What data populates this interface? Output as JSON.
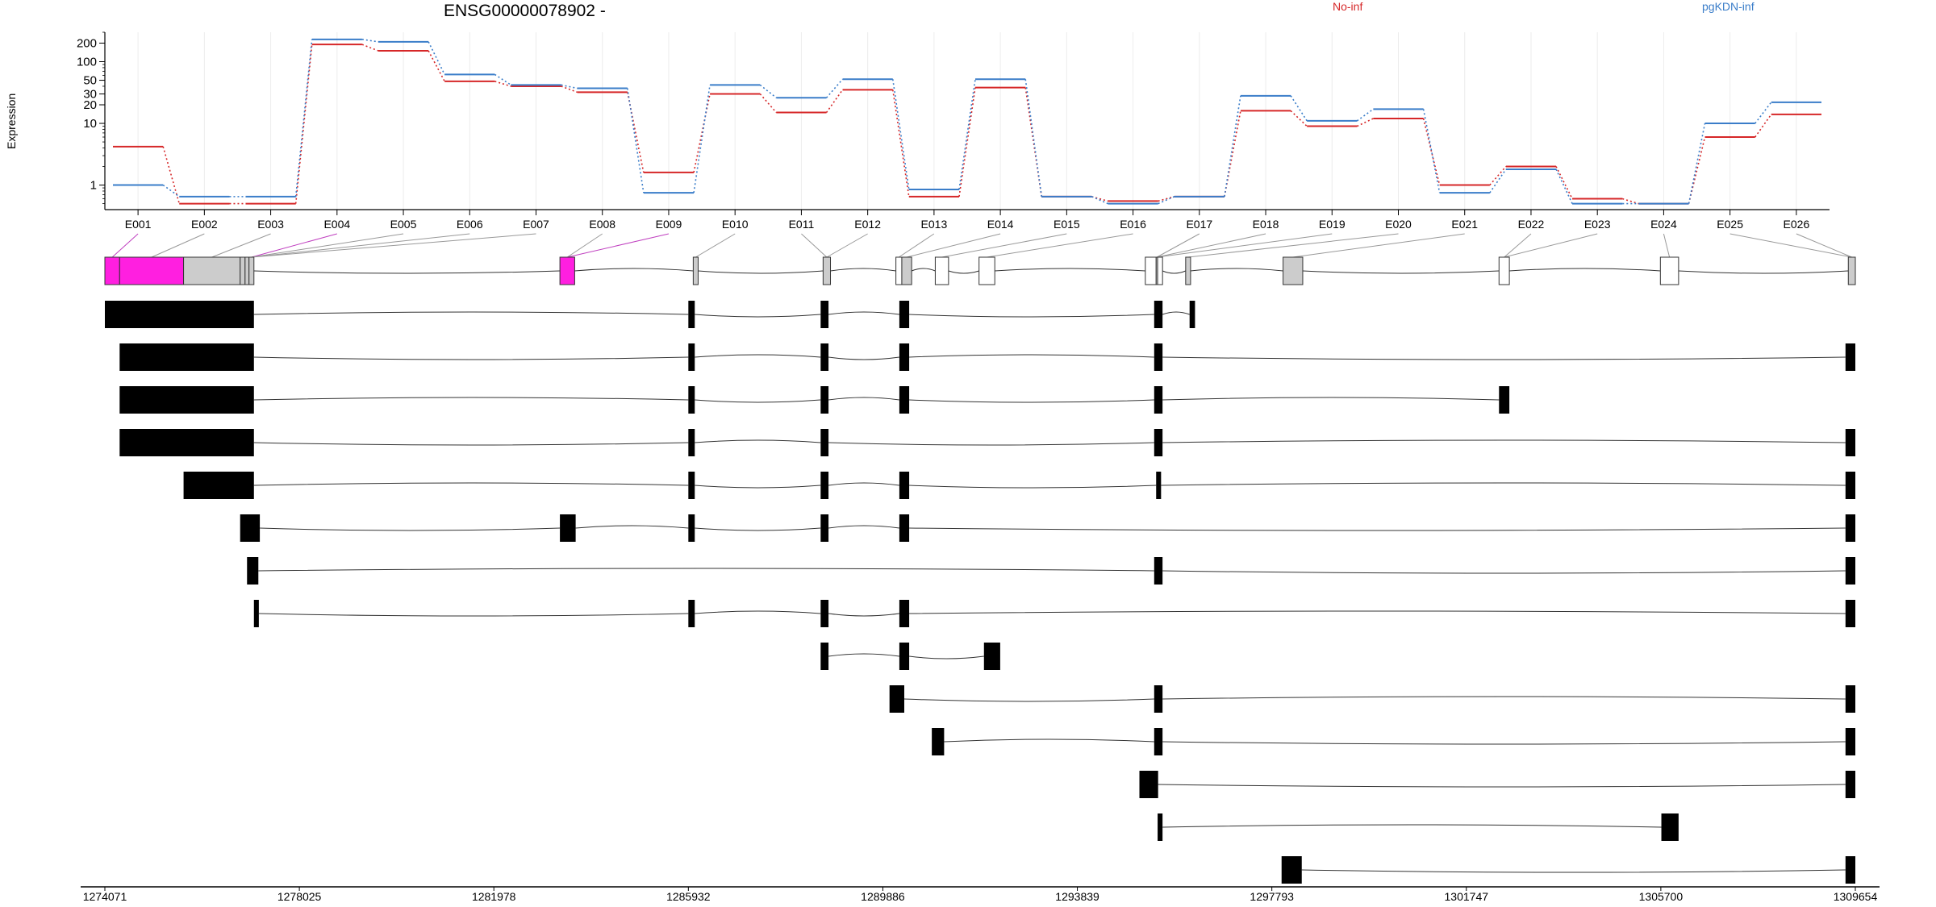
{
  "chart_data": {
    "type": "line",
    "title": "ENSG00000078902 -",
    "ylabel": "Expression",
    "yscale": "log",
    "ylim": [
      0.4,
      300
    ],
    "yticks": [
      1,
      10,
      20,
      30,
      50,
      100,
      200
    ],
    "exons": [
      "E001",
      "E002",
      "E003",
      "E004",
      "E005",
      "E006",
      "E007",
      "E008",
      "E009",
      "E010",
      "E011",
      "E012",
      "E013",
      "E014",
      "E015",
      "E016",
      "E017",
      "E018",
      "E019",
      "E020",
      "E021",
      "E022",
      "E023",
      "E024",
      "E025",
      "E026"
    ],
    "series": [
      {
        "name": "No-inf",
        "color": "#d62728",
        "values": [
          4.2,
          0.5,
          0.5,
          190,
          150,
          48,
          40,
          32,
          1.6,
          30,
          15,
          35,
          0.65,
          38,
          0.65,
          0.55,
          0.65,
          16,
          9,
          12,
          1.0,
          2.0,
          0.6,
          0.5,
          6,
          14
        ]
      },
      {
        "name": "pgKDN-inf",
        "color": "#3a7dc9",
        "values": [
          1.0,
          0.65,
          0.65,
          230,
          210,
          62,
          42,
          37,
          0.75,
          42,
          26,
          52,
          0.85,
          52,
          0.65,
          0.5,
          0.65,
          28,
          11,
          17,
          0.75,
          1.8,
          0.5,
          0.5,
          10,
          22
        ]
      }
    ],
    "genome": {
      "start": 1274071,
      "end": 1309654,
      "axis_ticks": [
        "1274071",
        "1278025",
        "1281978",
        "1285932",
        "1289886",
        "1293839",
        "1297793",
        "1301747",
        "1305700",
        "1309654"
      ],
      "exon_bins": [
        [
          1274071,
          1274371
        ],
        [
          1274371,
          1275671
        ],
        [
          1275671,
          1276821
        ],
        [
          1276821,
          1276921
        ],
        [
          1276921,
          1277001
        ],
        [
          1277001,
          1277101
        ],
        [
          1283321,
          1283621
        ],
        [
          1286031,
          1286131
        ],
        [
          1288671,
          1288821
        ],
        [
          1290151,
          1290271
        ],
        [
          1290271,
          1290471
        ],
        [
          1290951,
          1291221
        ],
        [
          1291841,
          1292161
        ],
        [
          1295221,
          1295441
        ],
        [
          1295441,
          1295471
        ],
        [
          1295471,
          1295571
        ],
        [
          1296041,
          1296141
        ],
        [
          1298021,
          1298421
        ],
        [
          1302411,
          1302621
        ],
        [
          1305691,
          1306061
        ],
        [
          1309511,
          1309654
        ]
      ],
      "gene_track_fill": [
        "#ff1fe0",
        "#ff1fe0",
        "#cccccc",
        "#cccccc",
        "#cccccc",
        "#cccccc",
        "#ff1fe0",
        "#cccccc",
        "#cccccc",
        "#ffffff",
        "#cccccc",
        "#ffffff",
        "#ffffff",
        "#ffffff",
        "#cccccc",
        "#ffffff",
        "#cccccc",
        "#cccccc",
        "#ffffff",
        "#ffffff",
        "#cccccc"
      ],
      "connectors": [
        [
          0,
          0
        ],
        [
          1,
          1
        ],
        [
          2,
          2
        ],
        [
          3,
          5
        ],
        [
          4,
          5
        ],
        [
          5,
          5
        ],
        [
          6,
          5
        ],
        [
          7,
          6
        ],
        [
          8,
          6
        ],
        [
          9,
          7
        ],
        [
          10,
          8
        ],
        [
          11,
          8
        ],
        [
          12,
          9
        ],
        [
          13,
          10
        ],
        [
          14,
          11
        ],
        [
          15,
          12
        ],
        [
          16,
          14
        ],
        [
          17,
          14
        ],
        [
          18,
          14
        ],
        [
          19,
          16
        ],
        [
          20,
          17
        ],
        [
          21,
          18
        ],
        [
          22,
          18
        ],
        [
          23,
          19
        ],
        [
          24,
          20
        ],
        [
          25,
          20
        ]
      ],
      "connector_magenta": [
        0,
        3,
        8
      ],
      "transcripts": [
        [
          [
            1274071,
            1277101
          ],
          [
            1285932,
            1286062
          ],
          [
            1288621,
            1288781
          ],
          [
            1290221,
            1290421
          ],
          [
            1295401,
            1295571
          ],
          [
            1296121,
            1296231
          ]
        ],
        [
          [
            1274371,
            1277101
          ],
          [
            1285932,
            1286062
          ],
          [
            1288621,
            1288781
          ],
          [
            1290221,
            1290421
          ],
          [
            1295401,
            1295571
          ],
          [
            1309454,
            1309654
          ]
        ],
        [
          [
            1274371,
            1277101
          ],
          [
            1285932,
            1286062
          ],
          [
            1288621,
            1288781
          ],
          [
            1290221,
            1290421
          ],
          [
            1295401,
            1295571
          ],
          [
            1302411,
            1302621
          ]
        ],
        [
          [
            1274371,
            1277101
          ],
          [
            1285932,
            1286062
          ],
          [
            1288621,
            1288781
          ],
          [
            1295401,
            1295571
          ],
          [
            1309454,
            1309654
          ]
        ],
        [
          [
            1275671,
            1277101
          ],
          [
            1285932,
            1286062
          ],
          [
            1288621,
            1288781
          ],
          [
            1290221,
            1290421
          ],
          [
            1295441,
            1295541
          ],
          [
            1309454,
            1309654
          ]
        ],
        [
          [
            1276821,
            1277221
          ],
          [
            1283321,
            1283641
          ],
          [
            1285932,
            1286062
          ],
          [
            1288621,
            1288781
          ],
          [
            1290221,
            1290421
          ],
          [
            1309454,
            1309654
          ]
        ],
        [
          [
            1276961,
            1277191
          ],
          [
            1295401,
            1295571
          ],
          [
            1309454,
            1309654
          ]
        ],
        [
          [
            1277101,
            1277201
          ],
          [
            1285932,
            1286062
          ],
          [
            1288621,
            1288781
          ],
          [
            1290221,
            1290421
          ],
          [
            1309454,
            1309654
          ]
        ],
        [
          [
            1288621,
            1288781
          ],
          [
            1290221,
            1290421
          ],
          [
            1291941,
            1292271
          ]
        ],
        [
          [
            1290021,
            1290321
          ],
          [
            1295401,
            1295571
          ],
          [
            1309454,
            1309654
          ]
        ],
        [
          [
            1290881,
            1291131
          ],
          [
            1295401,
            1295571
          ],
          [
            1309454,
            1309654
          ]
        ],
        [
          [
            1295101,
            1295481
          ],
          [
            1309454,
            1309654
          ]
        ],
        [
          [
            1295471,
            1295571
          ],
          [
            1305711,
            1306061
          ]
        ],
        [
          [
            1297991,
            1298401
          ],
          [
            1309454,
            1309654
          ]
        ]
      ]
    }
  },
  "legend": [
    {
      "label": "No-inf",
      "color": "#d62728"
    },
    {
      "label": "pgKDN-inf",
      "color": "#3a7dc9"
    }
  ]
}
